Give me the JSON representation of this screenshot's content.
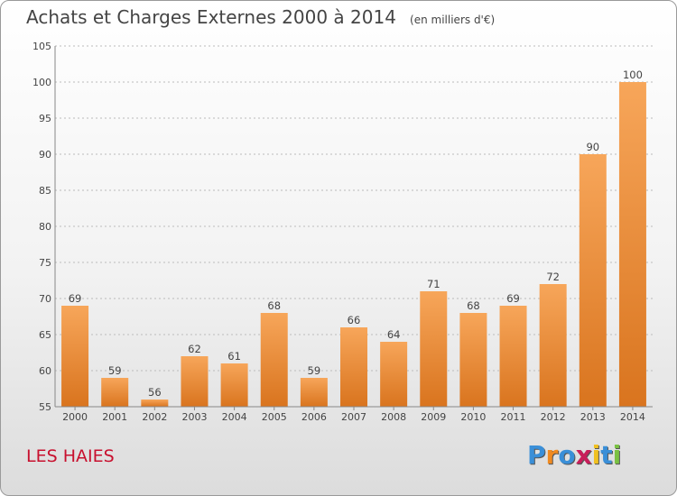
{
  "header": {
    "title": "Achats et Charges Externes 2000 à 2014",
    "subtitle": "(en milliers d'€)"
  },
  "place": "LES HAIES",
  "logo": {
    "text": "Proxiti",
    "letter_colors": [
      "#3a8fd8",
      "#f08a20",
      "#3a8fd8",
      "#c81e5a",
      "#f0c020",
      "#3a8fd8",
      "#7ac143"
    ]
  },
  "colors": {
    "bar_top": "#f7a65a",
    "bar_bottom": "#d9741e",
    "grid": "#bbbbbb",
    "axis_text": "#444444",
    "place_text": "#c8102e"
  },
  "chart_data": {
    "type": "bar",
    "title": "Achats et Charges Externes 2000 à 2014",
    "subtitle": "(en milliers d'€)",
    "categories": [
      "2000",
      "2001",
      "2002",
      "2003",
      "2004",
      "2005",
      "2006",
      "2007",
      "2008",
      "2009",
      "2010",
      "2011",
      "2012",
      "2013",
      "2014"
    ],
    "values": [
      69,
      59,
      56,
      62,
      61,
      68,
      59,
      66,
      64,
      71,
      68,
      69,
      72,
      90,
      100
    ],
    "ylim": [
      55,
      105
    ],
    "yticks": [
      55,
      60,
      65,
      70,
      75,
      80,
      85,
      90,
      95,
      100,
      105
    ],
    "grid": true,
    "xlabel": "",
    "ylabel": ""
  }
}
